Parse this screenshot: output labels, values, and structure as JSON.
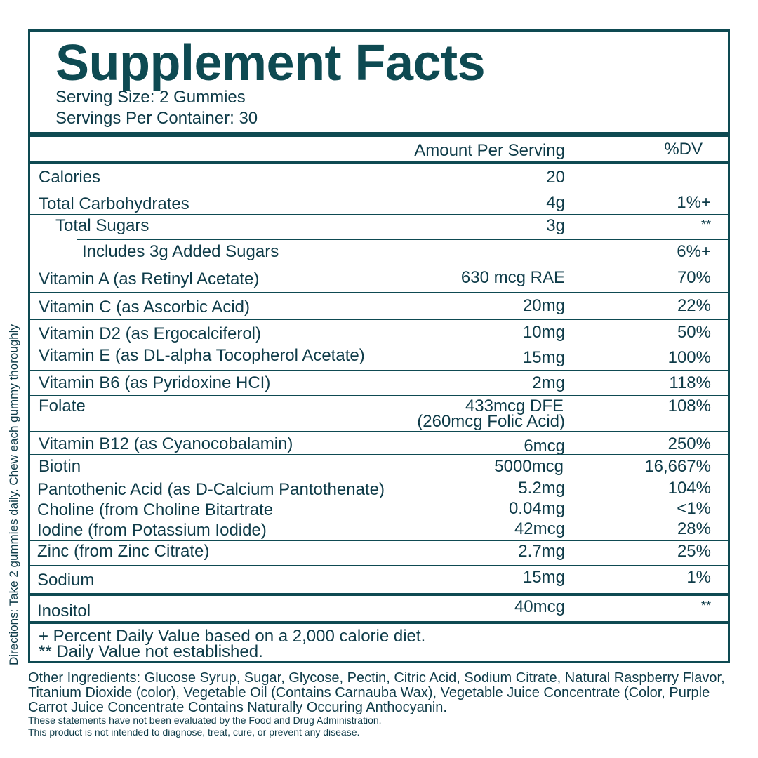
{
  "directions": "Directions: Take 2 gummies daily. Chew each gummy thoroughly",
  "header": {
    "title": "Supplement Facts",
    "serving_size": "Serving Size: 2 Gummies",
    "servings_per_container": "Servings Per Container: 30"
  },
  "columns": {
    "amount": "Amount Per Serving",
    "dv": "%DV"
  },
  "rows": [
    {
      "name": "Calories",
      "amount": "20",
      "dv": ""
    },
    {
      "name": "Total Carbohydrates",
      "amount": "4g",
      "dv": "1%+"
    },
    {
      "name": "Total Sugars",
      "amount": "3g",
      "dv": "**"
    },
    {
      "name": "Includes 3g Added Sugars",
      "amount": "",
      "dv": "6%+"
    },
    {
      "name": "Vitamin A (as Retinyl Acetate)",
      "amount": "630 mcg RAE",
      "dv": "70%"
    },
    {
      "name": "Vitamin C (as Ascorbic Acid)",
      "amount": "20mg",
      "dv": "22%"
    },
    {
      "name": "Vitamin D2 (as Ergocalciferol)",
      "amount": "10mg",
      "dv": "50%"
    },
    {
      "name": "Vitamin E (as DL-alpha Tocopherol Acetate)",
      "amount": "15mg",
      "dv": "100%"
    },
    {
      "name": "Vitamin B6 (as Pyridoxine HCI)",
      "amount": "2mg",
      "dv": "118%"
    },
    {
      "name": "Folate",
      "amount": "433mcg DFE",
      "amount2": "(260mcg Folic Acid)",
      "dv": "108%"
    },
    {
      "name": "Vitamin B12 (as Cyanocobalamin)",
      "amount": "6mcg",
      "dv": "250%"
    },
    {
      "name": "Biotin",
      "amount": "5000mcg",
      "dv": "16,667%"
    },
    {
      "name": "Pantothenic Acid (as D-Calcium Pantothenate)",
      "amount": "5.2mg",
      "dv": "104%"
    },
    {
      "name": "Choline (from Choline Bitartrate",
      "amount": "0.04mg",
      "dv": "<1%"
    },
    {
      "name": "Iodine (from Potassium Iodide)",
      "amount": "42mcg",
      "dv": "28%"
    },
    {
      "name": "Zinc (from Zinc Citrate)",
      "amount": "2.7mg",
      "dv": "25%"
    },
    {
      "name": "Sodium",
      "amount": "15mg",
      "dv": "1%"
    },
    {
      "name": "Inositol",
      "amount": "40mcg",
      "dv": "**"
    }
  ],
  "footnotes": [
    "+ Percent Daily Value based on a 2,000 calorie diet.",
    "** Daily Value not established."
  ],
  "other_ingredients": "Other Ingredients: Glucose Syrup, Sugar, Glycose, Pectin, Citric Acid, Sodium Citrate, Natural Raspberry Flavor, Titanium Dioxide (color), Vegetable Oil (Contains Carnauba Wax), Vegetable Juice Concentrate (Color, Purple Carrot Juice Concentrate Contains Naturally Occuring Anthocyanin.",
  "disclaimer": [
    "These statements have not been evaluated by the Food and Drug Administration.",
    "This product is not intended to diagnose, treat, cure, or prevent any disease."
  ]
}
